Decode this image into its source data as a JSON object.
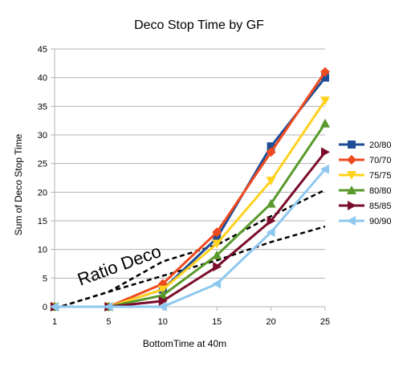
{
  "chart_data": {
    "type": "line",
    "title": "Deco Stop Time by GF",
    "xlabel": "BottomTime at 40m",
    "ylabel": "Sum of Deco Stop Time",
    "categories": [
      "1",
      "5",
      "10",
      "15",
      "20",
      "25"
    ],
    "ylim": [
      0,
      45
    ],
    "yticks": [
      0,
      5,
      10,
      15,
      20,
      25,
      30,
      35,
      40,
      45
    ],
    "grid": true,
    "legend_position": "right",
    "series": [
      {
        "name": "20/80",
        "color": "#1f4e96",
        "marker": "square",
        "values": [
          0,
          0,
          3,
          12,
          28,
          40
        ]
      },
      {
        "name": "70/70",
        "color": "#ee4a1f",
        "marker": "diamond",
        "values": [
          0,
          0,
          4,
          13,
          27,
          41
        ]
      },
      {
        "name": "75/75",
        "color": "#ffd21f",
        "marker": "triangle-down",
        "values": [
          0,
          0,
          3,
          11,
          22,
          36
        ]
      },
      {
        "name": "80/80",
        "color": "#5a9a2c",
        "marker": "triangle-up",
        "values": [
          0,
          0,
          2,
          9,
          18,
          32
        ]
      },
      {
        "name": "85/85",
        "color": "#7a0d2c",
        "marker": "triangle-right",
        "values": [
          0,
          0,
          1,
          7,
          15,
          27
        ]
      },
      {
        "name": "90/90",
        "color": "#8fc8ef",
        "marker": "triangle-left",
        "values": [
          0,
          0,
          0,
          4,
          13,
          24
        ]
      }
    ],
    "trendlines": [
      {
        "style": "dashed",
        "color": "#000000",
        "values": [
          -0.3,
          2.6,
          7.9,
          10.8,
          15.8,
          20.4
        ]
      },
      {
        "style": "dashed",
        "color": "#000000",
        "values": [
          -0.3,
          2.6,
          5.4,
          8.1,
          11.3,
          14.0
        ]
      }
    ],
    "annotation": {
      "text": "Ratio Deco"
    }
  }
}
